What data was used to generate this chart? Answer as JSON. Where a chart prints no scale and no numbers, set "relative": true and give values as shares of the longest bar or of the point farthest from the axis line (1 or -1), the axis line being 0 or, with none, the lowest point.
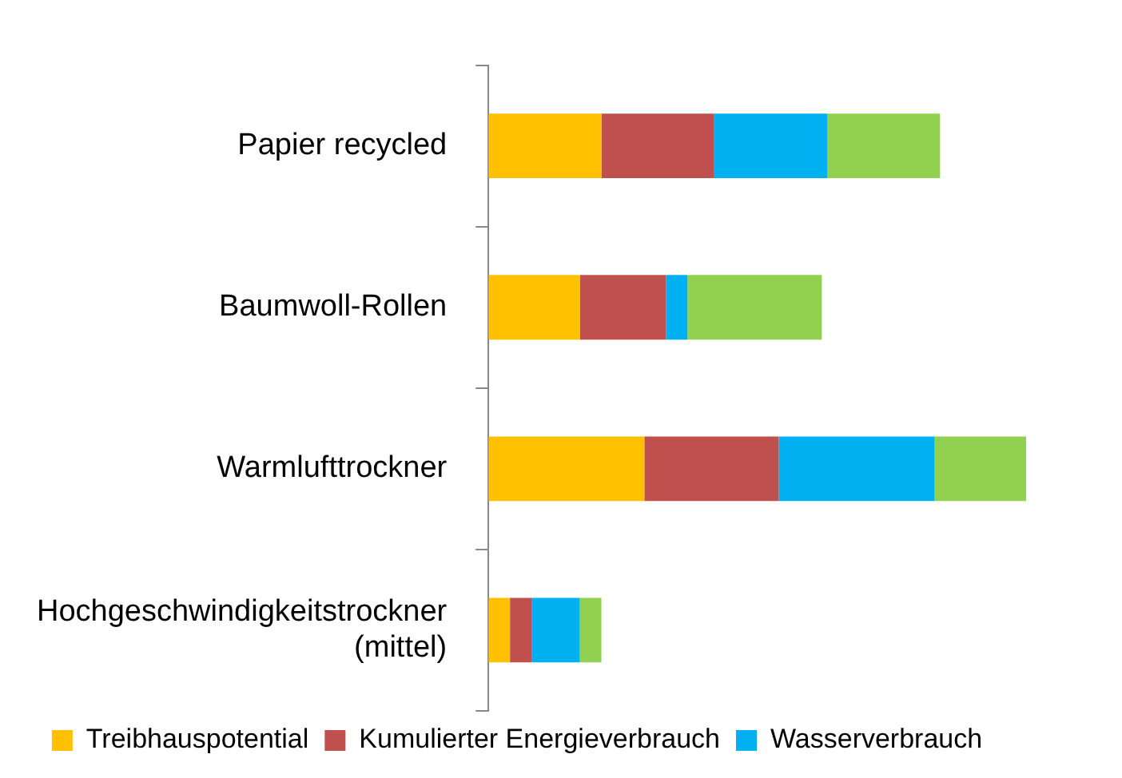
{
  "chart_data": {
    "type": "bar",
    "orientation": "horizontal",
    "stacked": true,
    "relative": true,
    "legend": "bottom",
    "categories": [
      "Papier recycled",
      "Baumwoll-Rollen",
      "Warmlufttrockner",
      "Hochgeschwindigkeitstrockner (mittel)"
    ],
    "series": [
      {
        "name": "Treibhauspotential",
        "color": "#ffc000",
        "values": [
          0.21,
          0.17,
          0.29,
          0.04
        ]
      },
      {
        "name": "Kumulierter Energieverbrauch",
        "color": "#c0504d",
        "values": [
          0.21,
          0.16,
          0.25,
          0.04
        ]
      },
      {
        "name": "Wasserverbrauch",
        "color": "#00b0f0",
        "values": [
          0.21,
          0.04,
          0.29,
          0.09
        ]
      },
      {
        "color": "#92d050",
        "values": [
          0.21,
          0.25,
          0.17,
          0.04
        ]
      }
    ]
  }
}
